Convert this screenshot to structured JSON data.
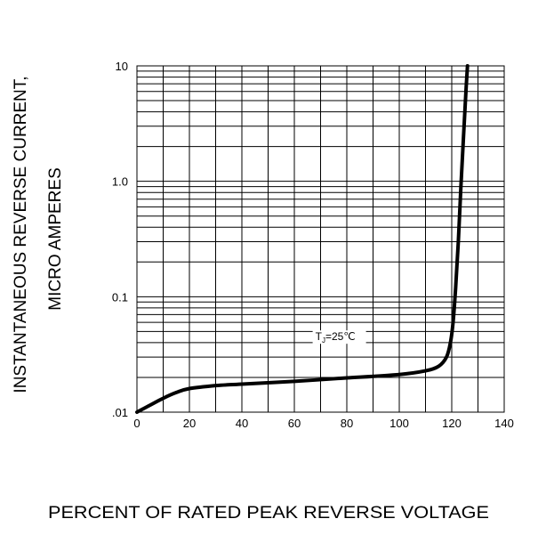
{
  "chart_data": {
    "type": "line",
    "title": "",
    "xlabel": "PERCENT OF RATED PEAK REVERSE VOLTAGE",
    "ylabel_lines": [
      "INSTANTANEOUS REVERSE CURRENT,",
      "MICRO AMPERES"
    ],
    "xlim": [
      0,
      140
    ],
    "ylim": [
      0.01,
      10
    ],
    "yscale": "log",
    "grid": true,
    "x_ticks": [
      "0",
      "20",
      "40",
      "60",
      "80",
      "100",
      "120",
      "140"
    ],
    "y_ticks": [
      ".01",
      "0.1",
      "1.0",
      "10"
    ],
    "series": [
      {
        "x": [
          0,
          5,
          10,
          15,
          20,
          30,
          40,
          60,
          80,
          100,
          110,
          115,
          118,
          119.5,
          120.5,
          121.5,
          122.5,
          123.5,
          124.5,
          125.5,
          126
        ],
        "y": [
          0.01,
          0.0115,
          0.0132,
          0.0148,
          0.016,
          0.017,
          0.0175,
          0.0185,
          0.0198,
          0.0212,
          0.0228,
          0.025,
          0.03,
          0.04,
          0.06,
          0.12,
          0.3,
          0.9,
          2.5,
          6.5,
          10
        ]
      }
    ],
    "annotation": {
      "text": "T",
      "subscript": "J",
      "suffix": "=25℃",
      "x": 68,
      "y": 0.042
    }
  }
}
